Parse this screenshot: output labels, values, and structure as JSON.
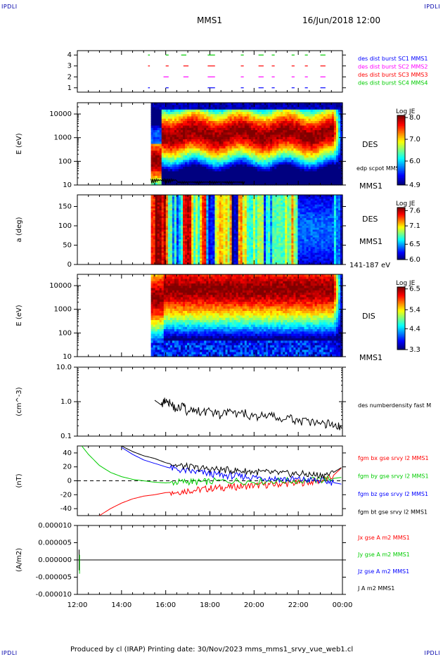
{
  "corners": {
    "tl": "IPDLI",
    "tr": "IPDLI",
    "bl": "IPDLI",
    "br": "IPDLI"
  },
  "header": {
    "title": "MMS1",
    "datetime": "16/Jun/2018 12:00"
  },
  "footer": {
    "text": "Produced by cl (IRAP)   Printing date: 30/Nov/2023   mms_mms1_srvy_vue_web1.cl"
  },
  "colors": {
    "blue": "#0000ff",
    "magenta": "#ff00ff",
    "red": "#ff0000",
    "green": "#00cc00",
    "black": "#000000"
  },
  "chart_data": [
    {
      "type": "scatter",
      "title": "burst availability",
      "yticks": [
        "1",
        "2",
        "3",
        "4"
      ],
      "x_range": [
        "12:00",
        "00:00"
      ],
      "series": [
        {
          "name": "des dist burst SC1 MMS1",
          "y": 1,
          "color": "#0000ff",
          "segments": [
            [
              15.2,
              15.25
            ],
            [
              16.0,
              16.1
            ],
            [
              17.9,
              18.2
            ],
            [
              19.4,
              19.5
            ],
            [
              20.2,
              20.4
            ],
            [
              20.8,
              20.9
            ],
            [
              21.7,
              21.8
            ],
            [
              22.3,
              22.4
            ],
            [
              23.0,
              23.2
            ]
          ]
        },
        {
          "name": "des dist burst SC2 MMS2",
          "y": 2,
          "color": "#ff00ff",
          "segments": [
            [
              15.9,
              16.1
            ],
            [
              16.8,
              17.0
            ],
            [
              17.9,
              18.2
            ],
            [
              19.4,
              19.5
            ],
            [
              20.2,
              20.4
            ],
            [
              20.8,
              20.9
            ],
            [
              21.7,
              21.8
            ],
            [
              22.3,
              22.4
            ],
            [
              23.0,
              23.2
            ]
          ]
        },
        {
          "name": "des dist burst SC3 MMS3",
          "y": 3,
          "color": "#ff0000",
          "segments": [
            [
              15.2,
              15.25
            ],
            [
              16.0,
              16.1
            ],
            [
              16.8,
              17.0
            ],
            [
              17.9,
              18.2
            ],
            [
              19.4,
              19.5
            ],
            [
              20.2,
              20.4
            ],
            [
              20.8,
              20.9
            ],
            [
              21.7,
              21.8
            ],
            [
              22.3,
              22.4
            ],
            [
              23.0,
              23.2
            ]
          ]
        },
        {
          "name": "des dist burst SC4 MMS4",
          "y": 4,
          "color": "#00cc00",
          "segments": [
            [
              15.2,
              15.25
            ],
            [
              16.0,
              16.1
            ],
            [
              16.7,
              16.9
            ],
            [
              17.9,
              18.2
            ],
            [
              19.4,
              19.5
            ],
            [
              20.2,
              20.4
            ],
            [
              20.8,
              20.9
            ],
            [
              21.7,
              21.8
            ],
            [
              22.3,
              22.4
            ],
            [
              23.0,
              23.2
            ]
          ]
        }
      ]
    },
    {
      "type": "heatmap",
      "ylabel": "E (eV)",
      "yscale": "log",
      "ylim": [
        10,
        30000
      ],
      "yticks": [
        "10",
        "100",
        "1000",
        "10000"
      ],
      "label": "DES",
      "overlay": {
        "name": "edp scpot MMS1",
        "color": "#000000"
      },
      "sublabel": "MMS1",
      "colorbar": {
        "title": "Log JE",
        "ticks": [
          "8.0",
          "7.0",
          "6.0",
          "4.9"
        ],
        "min": 4.9,
        "max": 8.1
      },
      "data_start": "15:20"
    },
    {
      "type": "heatmap",
      "ylabel": "a (deg)",
      "ylim": [
        0,
        180
      ],
      "yticks": [
        "0",
        "50",
        "100",
        "150"
      ],
      "label": "DES",
      "sublabel": "MMS1",
      "energy_range": "141-187 eV",
      "colorbar": {
        "title": "Log JE",
        "ticks": [
          "7.6",
          "7.1",
          "6.5",
          "6.0"
        ],
        "min": 6.0,
        "max": 7.7
      },
      "data_start": "15:20"
    },
    {
      "type": "heatmap",
      "ylabel": "E (eV)",
      "yscale": "log",
      "ylim": [
        10,
        30000
      ],
      "yticks": [
        "10",
        "100",
        "1000",
        "10000"
      ],
      "label": "DIS",
      "sublabel": "MMS1",
      "colorbar": {
        "title": "Log JE",
        "ticks": [
          "6.5",
          "5.4",
          "4.4",
          "3.3"
        ],
        "min": 3.3,
        "max": 6.6
      },
      "data_start": "15:20"
    },
    {
      "type": "line",
      "ylabel": "(cm^-3)",
      "yscale": "log",
      "ylim": [
        0.1,
        10
      ],
      "yticks": [
        "0.1",
        "1.0",
        "10.0"
      ],
      "series": [
        {
          "name": "des numberdensity fast M",
          "color": "#000000",
          "x": [
            15.5,
            15.8,
            16.0,
            16.2,
            16.5,
            16.8,
            17.0,
            17.3,
            17.6,
            18.0,
            18.4,
            18.8,
            19.2,
            19.6,
            20.0,
            20.4,
            20.8,
            21.2,
            21.6,
            22.0,
            22.4,
            22.8,
            23.2,
            23.5,
            23.8,
            24.0
          ],
          "y": [
            1.1,
            0.8,
            1.2,
            0.9,
            0.6,
            0.8,
            0.45,
            0.6,
            0.5,
            0.55,
            0.4,
            0.5,
            0.42,
            0.45,
            0.35,
            0.4,
            0.38,
            0.3,
            0.32,
            0.28,
            0.25,
            0.24,
            0.22,
            0.24,
            0.2,
            0.15
          ]
        }
      ]
    },
    {
      "type": "line",
      "ylabel": "(nT)",
      "ylim": [
        -50,
        50
      ],
      "yticks": [
        "-40",
        "-20",
        "0",
        "20",
        "40"
      ],
      "series": [
        {
          "name": "fgm bx gse srvy l2 MMS1",
          "color": "#ff0000",
          "x": [
            13.0,
            13.5,
            14.0,
            14.5,
            15.0,
            15.5,
            16.0,
            16.5,
            17.0,
            17.5,
            18.0,
            18.5,
            19.0,
            19.5,
            20.0,
            20.5,
            21.0,
            21.5,
            22.0,
            22.5,
            23.0,
            23.5,
            24.0
          ],
          "y": [
            -50,
            -40,
            -32,
            -26,
            -22,
            -20,
            -17,
            -16,
            -14,
            -13,
            -11,
            -10,
            -9,
            -8,
            -7,
            -6,
            -5,
            -4,
            -3,
            -2,
            0,
            5,
            20
          ]
        },
        {
          "name": "fgm by gse srvy l2 MMS1",
          "color": "#00cc00",
          "x": [
            12.2,
            12.5,
            13.0,
            13.5,
            14.0,
            14.5,
            15.0,
            15.5,
            16.0,
            16.5,
            17.0,
            17.5,
            18.0,
            19.0,
            20.0,
            21.0,
            22.0,
            23.0,
            23.5,
            24.0
          ],
          "y": [
            50,
            38,
            22,
            12,
            6,
            2,
            0,
            -2,
            -3,
            -2,
            -1,
            -2,
            -1,
            0,
            -1,
            0,
            0,
            1,
            3,
            5
          ]
        },
        {
          "name": "fgm bz gse srvy l2 MMS1",
          "color": "#0000ff",
          "x": [
            14.0,
            14.5,
            15.0,
            15.5,
            16.0,
            16.5,
            17.0,
            17.5,
            18.0,
            18.5,
            19.0,
            19.5,
            20.0,
            20.5,
            21.0,
            21.5,
            22.0,
            22.5,
            23.0,
            23.5,
            24.0
          ],
          "y": [
            48,
            38,
            30,
            25,
            20,
            16,
            14,
            12,
            10,
            8,
            7,
            6,
            5,
            4,
            3,
            2,
            2,
            1,
            0,
            -2,
            -5
          ]
        },
        {
          "name": "fgm bt gse srvy l2 MMS1",
          "color": "#000000",
          "x": [
            14.0,
            14.5,
            15.0,
            15.5,
            16.0,
            16.5,
            17.0,
            17.5,
            18.0,
            18.5,
            19.0,
            19.5,
            20.0,
            20.5,
            21.0,
            21.5,
            22.0,
            22.5,
            23.0,
            23.5,
            24.0
          ],
          "y": [
            50,
            42,
            36,
            32,
            26,
            22,
            20,
            18,
            17,
            16,
            15,
            14,
            13,
            12,
            11,
            10,
            10,
            9,
            8,
            10,
            20
          ]
        }
      ]
    },
    {
      "type": "line",
      "ylabel": "(A/m2)",
      "ylim": [
        -1e-05,
        1e-05
      ],
      "yticks": [
        "0.000010",
        "0.000005",
        "0.000000",
        "-0.000005",
        "-0.000010"
      ],
      "series": [
        {
          "name": "Jx gse A m2 MMS1",
          "color": "#ff0000",
          "x": [
            12.0,
            24.0
          ],
          "y": [
            0,
            0
          ]
        },
        {
          "name": "Jy gse A m2 MMS1",
          "color": "#00cc00",
          "x": [
            12.0,
            24.0
          ],
          "y": [
            0,
            0
          ]
        },
        {
          "name": "Jz gse A m2 MMS1",
          "color": "#0000ff",
          "x": [
            12.0,
            24.0
          ],
          "y": [
            0,
            0
          ]
        },
        {
          "name": "J A m2 MMS1",
          "color": "#000000",
          "x": [
            12.0,
            24.0
          ],
          "y": [
            0,
            0
          ]
        }
      ]
    }
  ],
  "xaxis": {
    "ticks": [
      "12:00",
      "14:00",
      "16:00",
      "18:00",
      "20:00",
      "22:00",
      "00:00"
    ]
  }
}
